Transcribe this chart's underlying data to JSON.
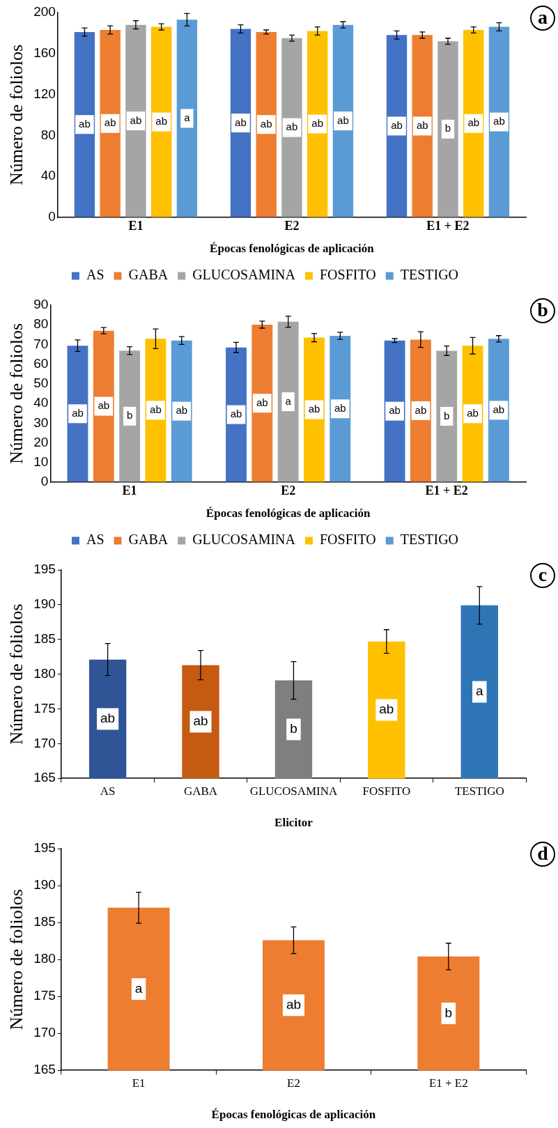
{
  "chart_data": [
    {
      "type": "bar",
      "ylabel": "Número de foliolos",
      "xlabel": "Épocas fenológicas de aplicación",
      "categories": [
        "E1",
        "E2",
        "E1 + E2"
      ],
      "series": [
        {
          "name": "AS",
          "color": "#4472c4",
          "values": [
            181,
            184,
            178
          ],
          "errors": [
            4,
            4,
            4
          ],
          "value_labels": [
            "ab",
            "ab",
            "ab"
          ]
        },
        {
          "name": "GABA",
          "color": "#ed7d31",
          "values": [
            183,
            181,
            178
          ],
          "errors": [
            4,
            2,
            3
          ],
          "value_labels": [
            "ab",
            "ab",
            "ab"
          ]
        },
        {
          "name": "GLUCOSAMINA",
          "color": "#a5a5a5",
          "values": [
            188,
            175,
            172
          ],
          "errors": [
            4,
            3,
            3
          ],
          "value_labels": [
            "ab",
            "ab",
            "b"
          ]
        },
        {
          "name": "FOSFITO",
          "color": "#ffc000",
          "values": [
            186,
            182,
            183
          ],
          "errors": [
            3,
            4,
            3
          ],
          "value_labels": [
            "ab",
            "ab",
            "ab"
          ]
        },
        {
          "name": "TESTIGO",
          "color": "#5b9bd5",
          "values": [
            193,
            188,
            186
          ],
          "errors": [
            6,
            3,
            4
          ],
          "value_labels": [
            "a",
            "ab",
            "ab"
          ]
        }
      ],
      "ylim": [
        0,
        200
      ],
      "yticks": [
        0,
        40,
        80,
        120,
        160,
        200
      ],
      "legend": "bottom",
      "annotations": [
        "a"
      ]
    },
    {
      "type": "bar",
      "ylabel": "Número de foliolos",
      "xlabel": "Épocas fenológicas de aplicación",
      "categories": [
        "E1",
        "E2",
        "E1 + E2"
      ],
      "series": [
        {
          "name": "AS",
          "color": "#4472c4",
          "values": [
            69.4,
            68.5,
            72
          ],
          "errors": [
            2.9,
            2.6,
            1
          ],
          "value_labels": [
            "ab",
            "ab",
            "ab"
          ]
        },
        {
          "name": "GABA",
          "color": "#ed7d31",
          "values": [
            77,
            80.1,
            72.5
          ],
          "errors": [
            1.6,
            1.8,
            4
          ],
          "value_labels": [
            "ab",
            "ab",
            "ab"
          ]
        },
        {
          "name": "GLUCOSAMINA",
          "color": "#a5a5a5",
          "values": [
            66.9,
            81.6,
            66.8
          ],
          "errors": [
            2,
            2.8,
            2.4
          ],
          "value_labels": [
            "b",
            "a",
            "b"
          ]
        },
        {
          "name": "FOSFITO",
          "color": "#ffc000",
          "values": [
            72.9,
            73.5,
            69.4
          ],
          "errors": [
            5,
            2.1,
            4.2
          ],
          "value_labels": [
            "ab",
            "ab",
            "ab"
          ]
        },
        {
          "name": "TESTIGO",
          "color": "#5b9bd5",
          "values": [
            72,
            74.4,
            72.9
          ],
          "errors": [
            2,
            1.8,
            1.6
          ],
          "value_labels": [
            "ab",
            "ab",
            "ab"
          ]
        }
      ],
      "ylim": [
        0,
        90
      ],
      "yticks": [
        0,
        10,
        20,
        30,
        40,
        50,
        60,
        70,
        80,
        90
      ],
      "legend": "bottom",
      "annotations": [
        "b"
      ]
    },
    {
      "type": "bar",
      "ylabel": "Número de foliolos",
      "xlabel": "Elicitor",
      "categories": [
        "AS",
        "GABA",
        "GLUCOSAMINA",
        "FOSFITO",
        "TESTIGO"
      ],
      "values": [
        182.1,
        181.3,
        179.1,
        184.7,
        189.9
      ],
      "colors": [
        "#2f5597",
        "#c55a11",
        "#7f7f7f",
        "#ffc000",
        "#2e75b6"
      ],
      "errors": [
        2.3,
        2.1,
        2.7,
        1.7,
        2.7
      ],
      "value_labels": [
        "ab",
        "ab",
        "b",
        "ab",
        "a"
      ],
      "ylim": [
        165,
        195
      ],
      "yticks": [
        165,
        170,
        175,
        180,
        185,
        190,
        195
      ],
      "annotations": [
        "c"
      ]
    },
    {
      "type": "bar",
      "ylabel": "Número de foliolos",
      "xlabel": "Épocas fenológicas de aplicación",
      "categories": [
        "E1",
        "E2",
        "E1 + E2"
      ],
      "values": [
        187,
        182.6,
        180.4
      ],
      "color": "#ed7d31",
      "errors": [
        2.1,
        1.8,
        1.8
      ],
      "value_labels": [
        "a",
        "ab",
        "b"
      ],
      "ylim": [
        165,
        195
      ],
      "yticks": [
        165,
        170,
        175,
        180,
        185,
        190,
        195
      ],
      "annotations": [
        "d"
      ]
    }
  ]
}
